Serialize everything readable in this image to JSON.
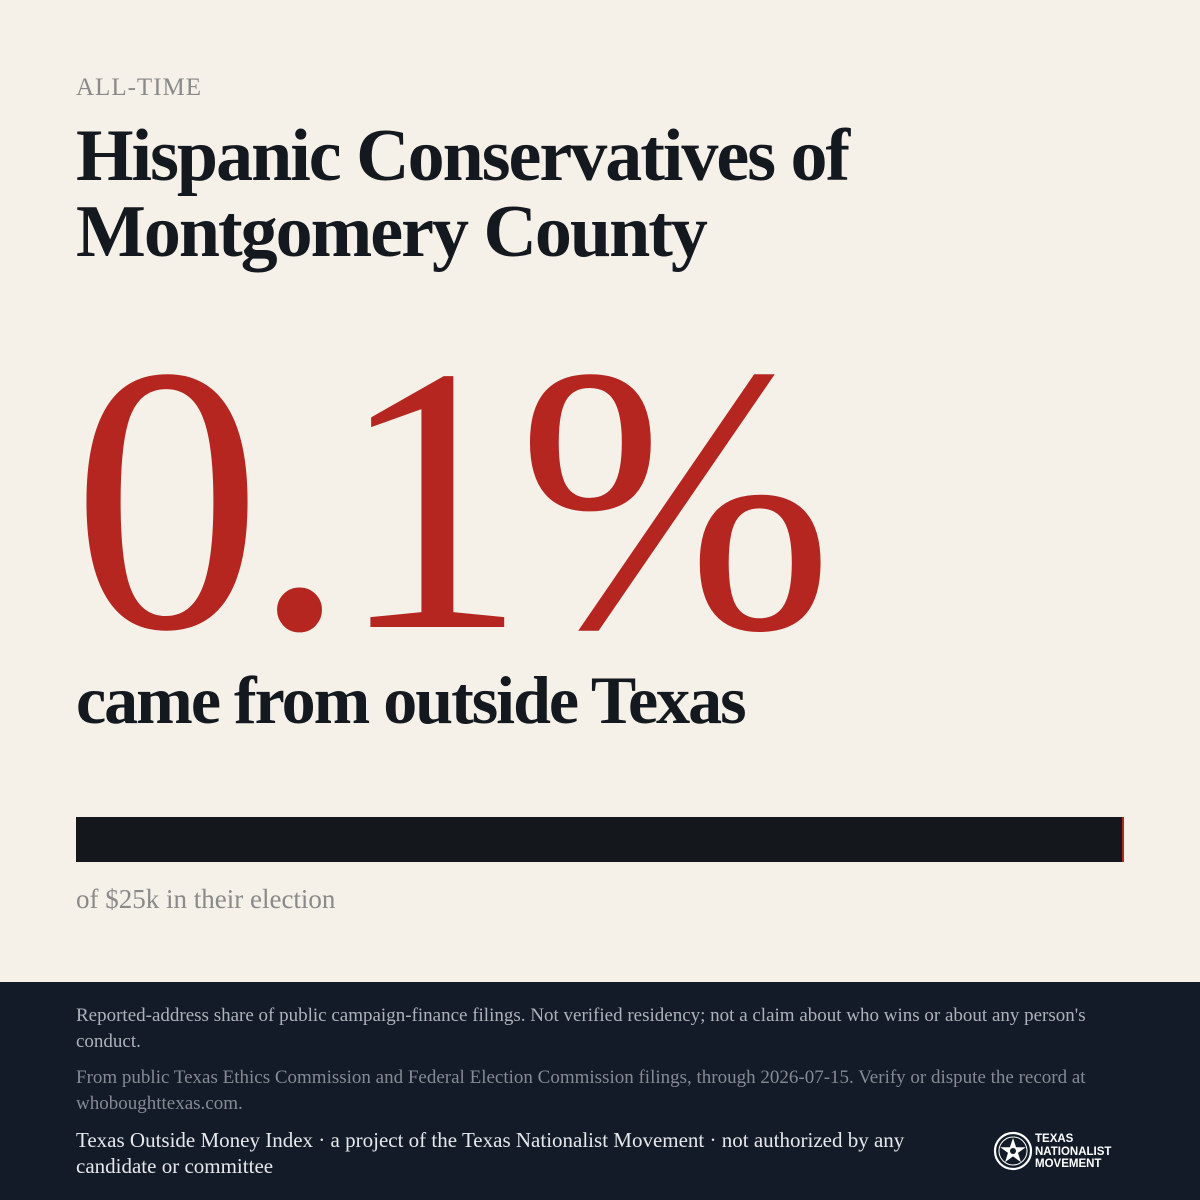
{
  "header": {
    "eyebrow": "ALL-TIME",
    "title": "Hispanic Conservatives of Montgomery County"
  },
  "stat": {
    "value": "0.1%",
    "caption": "came from outside Texas"
  },
  "bar": {
    "share_fraction": 0.001,
    "caption": "of $25k in their election"
  },
  "footer": {
    "disclaimer": "Reported-address share of public campaign-finance filings. Not verified residency; not a claim about who wins or about any person's conduct.",
    "source": "From public Texas Ethics Commission and Federal Election Commission filings, through 2026-07-15. Verify or dispute the record at whoboughttexas.com.",
    "credit": "Texas Outside Money Index · a project of the Texas Nationalist Movement · not authorized by any candidate or committee",
    "logo": {
      "icon": "star-seal-icon",
      "line1": "TEXAS",
      "line2": "NATIONALIST",
      "line3": "MOVEMENT"
    }
  },
  "colors": {
    "background": "#f5f0e8",
    "accent": "#b52620",
    "ink": "#14181f",
    "footer_bg": "#121b27"
  }
}
